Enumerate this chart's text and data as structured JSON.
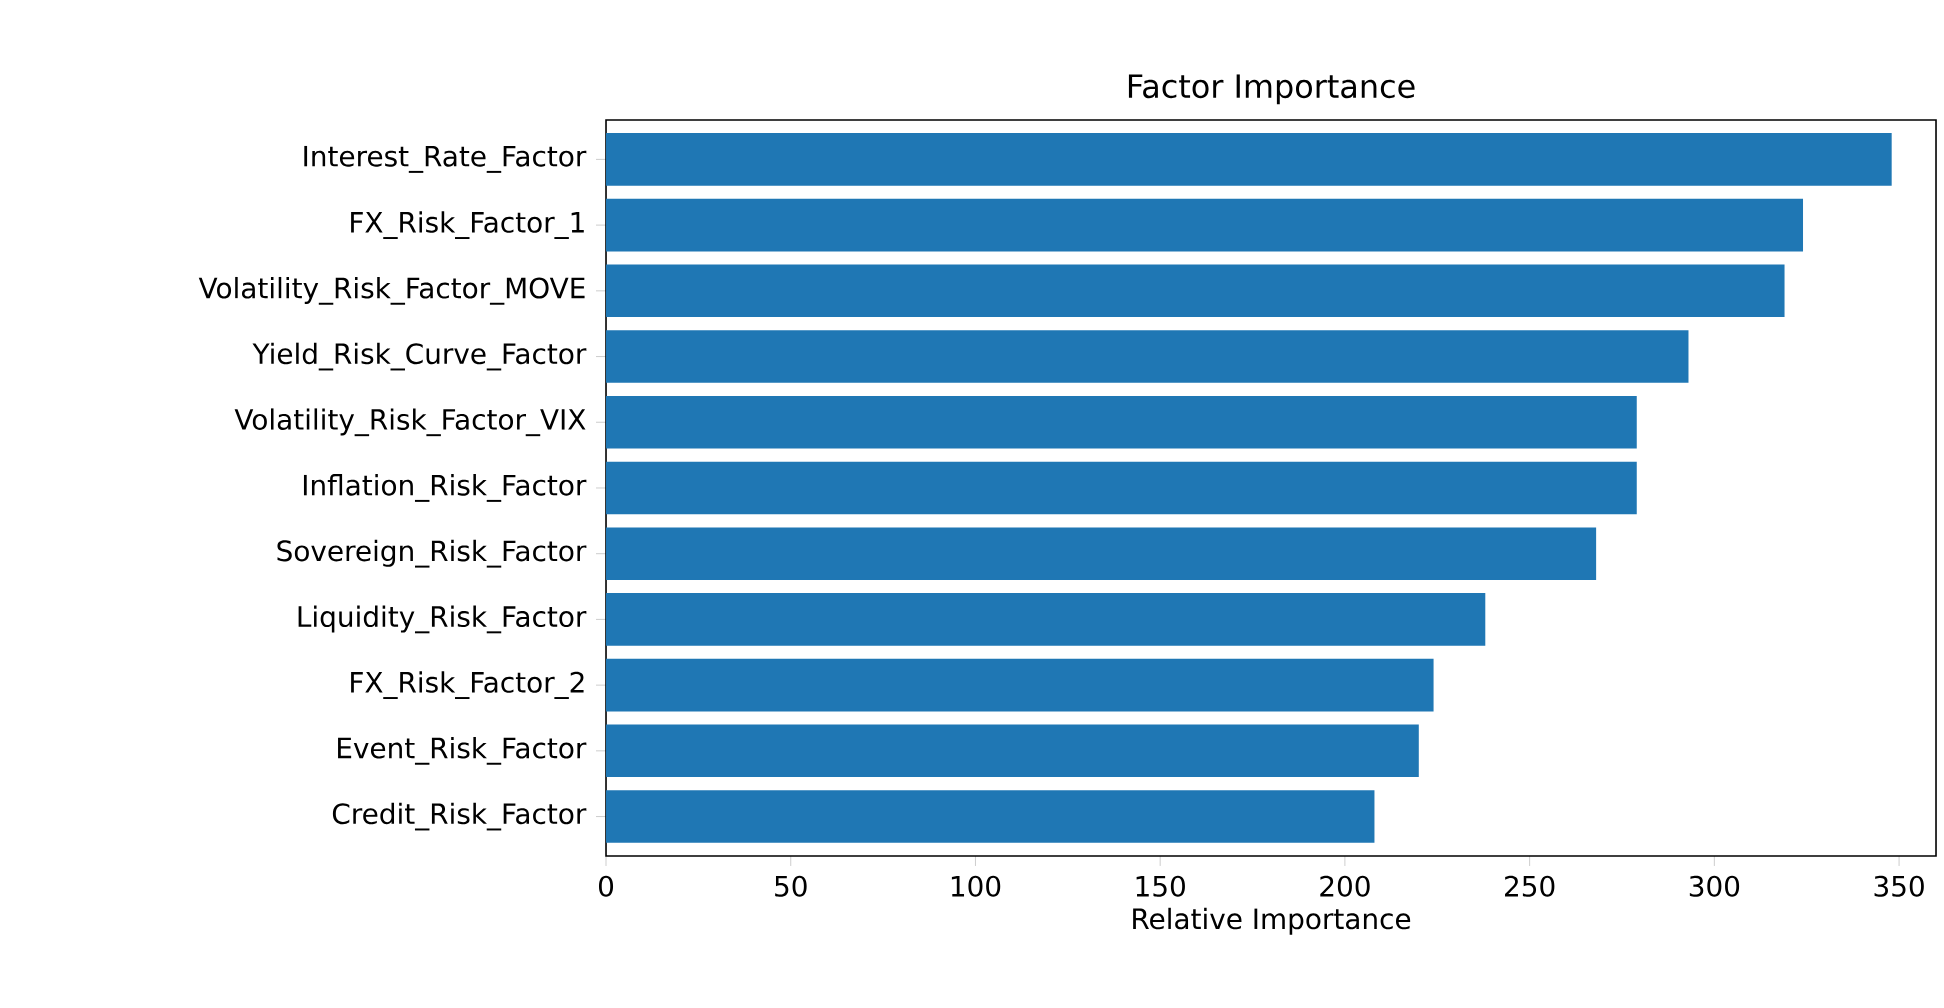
{
  "chart_data": {
    "type": "bar",
    "orientation": "horizontal",
    "title": "Factor Importance",
    "xlabel": "Relative Importance",
    "categories": [
      "Interest_Rate_Factor",
      "FX_Risk_Factor_1",
      "Volatility_Risk_Factor_MOVE",
      "Yield_Risk_Curve_Factor",
      "Volatility_Risk_Factor_VIX",
      "Inflation_Risk_Factor",
      "Sovereign_Risk_Factor",
      "Liquidity_Risk_Factor",
      "FX_Risk_Factor_2",
      "Event_Risk_Factor",
      "Credit_Risk_Factor"
    ],
    "values": [
      348,
      324,
      319,
      293,
      279,
      279,
      268,
      238,
      224,
      220,
      208
    ],
    "color": "#1f77b4",
    "xlim": [
      0,
      360
    ],
    "xticks": [
      0,
      50,
      100,
      150,
      200,
      250,
      300,
      350
    ],
    "grid": false
  }
}
